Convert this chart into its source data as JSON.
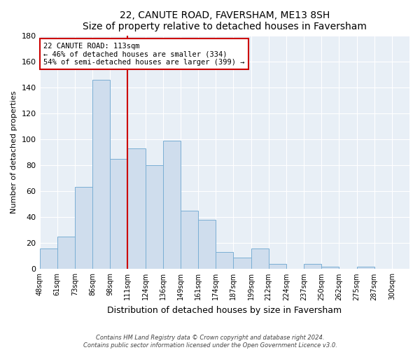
{
  "title": "22, CANUTE ROAD, FAVERSHAM, ME13 8SH",
  "subtitle": "Size of property relative to detached houses in Faversham",
  "xlabel": "Distribution of detached houses by size in Faversham",
  "ylabel": "Number of detached properties",
  "bin_labels": [
    "48sqm",
    "61sqm",
    "73sqm",
    "86sqm",
    "98sqm",
    "111sqm",
    "124sqm",
    "136sqm",
    "149sqm",
    "161sqm",
    "174sqm",
    "187sqm",
    "199sqm",
    "212sqm",
    "224sqm",
    "237sqm",
    "250sqm",
    "262sqm",
    "275sqm",
    "287sqm",
    "300sqm"
  ],
  "bar_values": [
    16,
    25,
    63,
    146,
    85,
    93,
    80,
    99,
    45,
    38,
    13,
    9,
    16,
    4,
    0,
    4,
    2,
    0,
    2,
    0,
    0
  ],
  "bar_color": "#cfdded",
  "bar_edge_color": "#7aafd4",
  "vline_x_idx": 5,
  "vline_color": "#cc0000",
  "annotation_title": "22 CANUTE ROAD: 113sqm",
  "annotation_line1": "← 46% of detached houses are smaller (334)",
  "annotation_line2": "54% of semi-detached houses are larger (399) →",
  "annotation_box_edge": "#cc0000",
  "ylim": [
    0,
    180
  ],
  "yticks": [
    0,
    20,
    40,
    60,
    80,
    100,
    120,
    140,
    160,
    180
  ],
  "footnote1": "Contains HM Land Registry data © Crown copyright and database right 2024.",
  "footnote2": "Contains public sector information licensed under the Open Government Licence v3.0.",
  "bg_color": "#e8eff6",
  "grid_color": "#ffffff"
}
